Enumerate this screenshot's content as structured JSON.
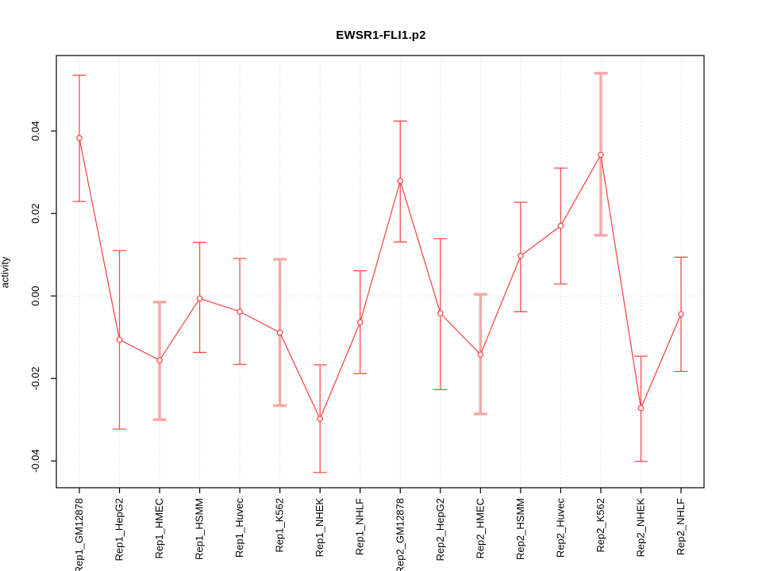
{
  "chart_data": {
    "type": "line",
    "title": "EWSR1-FLI1.p2",
    "xlabel": "",
    "ylabel": "activity",
    "legend": "none",
    "grid": {
      "vertical_per_category": true,
      "horizontal_at_zero": true,
      "style": "dotted"
    },
    "categories": [
      "Rep1_GM12878",
      "Rep1_HepG2",
      "Rep1_HMEC",
      "Rep1_HSMM",
      "Rep1_Huvec",
      "Rep1_K562",
      "Rep1_NHEK",
      "Rep1_NHLF",
      "Rep2_GM12878",
      "Rep2_HepG2",
      "Rep2_HMEC",
      "Rep2_HSMM",
      "Rep2_Huvec",
      "Rep2_K562",
      "Rep2_NHEK",
      "Rep2_NHLF"
    ],
    "series": [
      {
        "name": "activity",
        "marker": "open-circle",
        "values": [
          0.0383,
          -0.0106,
          -0.0156,
          -0.0006,
          -0.0038,
          -0.0089,
          -0.0298,
          -0.0064,
          0.0279,
          -0.0042,
          -0.0142,
          0.0097,
          0.017,
          0.0342,
          -0.0272,
          -0.0044
        ],
        "error_lower": [
          0.0229,
          -0.0323,
          -0.03,
          -0.0137,
          -0.0166,
          -0.0266,
          -0.0428,
          -0.0188,
          0.0131,
          -0.0227,
          -0.0286,
          -0.0038,
          0.0029,
          0.0147,
          -0.0401,
          -0.0183
        ],
        "error_upper": [
          0.0535,
          0.011,
          -0.0015,
          0.013,
          0.0091,
          0.0089,
          -0.0167,
          0.0061,
          0.0424,
          0.0139,
          0.0004,
          0.0227,
          0.031,
          0.054,
          -0.0146,
          0.0094
        ],
        "thick_error_bar_indices": [
          2,
          5,
          10,
          13
        ]
      }
    ],
    "yticks": [
      -0.04,
      -0.02,
      0,
      0.02,
      0.04
    ],
    "ytick_labels": [
      "-0.04",
      "-0.02",
      "0.00",
      "0.02",
      "0.04"
    ],
    "ylim": [
      -0.0465,
      0.0583
    ],
    "colors": {
      "line": "#f84b4b",
      "thick_error_bar": "#fba6a6",
      "marker_fill": "#ffffff",
      "grid": "#d9d9d9",
      "axis": "#000000",
      "background": "#ffffff"
    }
  }
}
